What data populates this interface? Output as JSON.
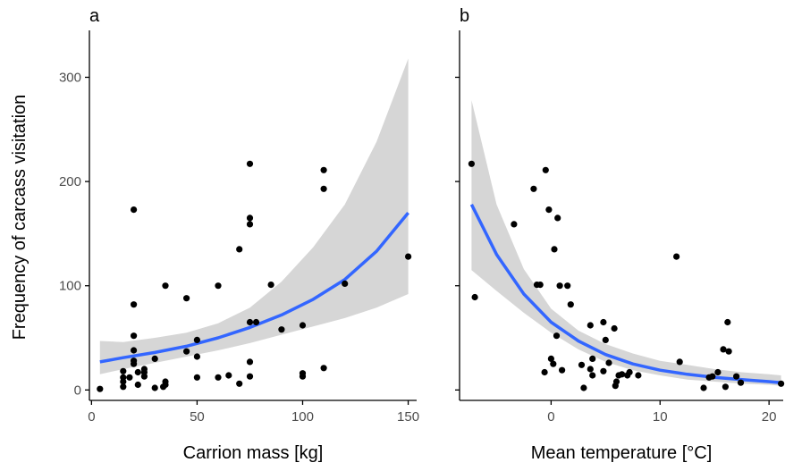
{
  "ylabel": "Frequency of carcass visitation",
  "colors": {
    "points": "#000000",
    "fit_line": "#3366ff",
    "ribbon": "#d6d6d6",
    "axis": "#000000",
    "tick_text": "#4d4d4d"
  },
  "chart_data": [
    {
      "type": "scatter",
      "panel_label": "a",
      "xlabel": "Carrion mass [kg]",
      "ylabel": "Frequency of carcass visitation",
      "xlim": [
        -1,
        154
      ],
      "ylim": [
        -10,
        345
      ],
      "xticks": [
        0,
        50,
        100,
        150
      ],
      "yticks": [
        0,
        100,
        200,
        300
      ],
      "grid": false,
      "points": [
        [
          4,
          1
        ],
        [
          15,
          3
        ],
        [
          15,
          8
        ],
        [
          15,
          12
        ],
        [
          15,
          18
        ],
        [
          18,
          12
        ],
        [
          20,
          25
        ],
        [
          20,
          28
        ],
        [
          20,
          38
        ],
        [
          20,
          52
        ],
        [
          20,
          82
        ],
        [
          20,
          173
        ],
        [
          22,
          5
        ],
        [
          22,
          17
        ],
        [
          25,
          13
        ],
        [
          25,
          17
        ],
        [
          25,
          20
        ],
        [
          30,
          2
        ],
        [
          30,
          30
        ],
        [
          34,
          3
        ],
        [
          35,
          5
        ],
        [
          35,
          8
        ],
        [
          35,
          100
        ],
        [
          45,
          37
        ],
        [
          45,
          88
        ],
        [
          50,
          12
        ],
        [
          50,
          32
        ],
        [
          50,
          48
        ],
        [
          60,
          12
        ],
        [
          60,
          100
        ],
        [
          65,
          14
        ],
        [
          70,
          6
        ],
        [
          70,
          135
        ],
        [
          75,
          13
        ],
        [
          75,
          27
        ],
        [
          75,
          65
        ],
        [
          75,
          159
        ],
        [
          75,
          165
        ],
        [
          75,
          217
        ],
        [
          78,
          65
        ],
        [
          85,
          101
        ],
        [
          90,
          58
        ],
        [
          100,
          13
        ],
        [
          100,
          16
        ],
        [
          100,
          62
        ],
        [
          110,
          21
        ],
        [
          110,
          193
        ],
        [
          110,
          211
        ],
        [
          120,
          102
        ],
        [
          150,
          128
        ]
      ],
      "fit": {
        "x": [
          4,
          15,
          30,
          45,
          60,
          75,
          90,
          105,
          120,
          135,
          150
        ],
        "y": [
          27,
          31,
          36,
          42,
          50,
          60,
          72,
          87,
          106,
          133,
          170
        ],
        "lower": [
          15,
          20,
          26,
          32,
          38,
          45,
          53,
          61,
          69,
          79,
          92
        ],
        "upper": [
          47,
          46,
          50,
          55,
          64,
          79,
          104,
          137,
          178,
          238,
          318
        ]
      }
    },
    {
      "type": "scatter",
      "panel_label": "b",
      "xlabel": "Mean temperature [°C]",
      "ylabel": "",
      "xlim": [
        -8.4,
        21.3
      ],
      "ylim": [
        -10,
        345
      ],
      "xticks": [
        0,
        10,
        20
      ],
      "yticks": [
        0,
        100,
        200,
        300
      ],
      "grid": false,
      "points": [
        [
          -7.3,
          217
        ],
        [
          -7.0,
          89
        ],
        [
          -3.4,
          159
        ],
        [
          -1.6,
          193
        ],
        [
          -1.3,
          101
        ],
        [
          -1.0,
          101
        ],
        [
          -0.6,
          17
        ],
        [
          -0.5,
          211
        ],
        [
          -0.2,
          173
        ],
        [
          0.0,
          30
        ],
        [
          0.2,
          25
        ],
        [
          0.3,
          135
        ],
        [
          0.5,
          52
        ],
        [
          0.6,
          165
        ],
        [
          0.8,
          100
        ],
        [
          1.0,
          19
        ],
        [
          1.5,
          100
        ],
        [
          1.8,
          82
        ],
        [
          2.8,
          24
        ],
        [
          3.0,
          2
        ],
        [
          3.6,
          62
        ],
        [
          3.6,
          20
        ],
        [
          3.8,
          14
        ],
        [
          3.8,
          30
        ],
        [
          4.8,
          65
        ],
        [
          4.8,
          18
        ],
        [
          5.0,
          48
        ],
        [
          5.3,
          26
        ],
        [
          5.8,
          59
        ],
        [
          5.9,
          4
        ],
        [
          6.0,
          8
        ],
        [
          6.2,
          14
        ],
        [
          6.5,
          15
        ],
        [
          7.0,
          14
        ],
        [
          7.2,
          17
        ],
        [
          8.0,
          14
        ],
        [
          11.5,
          128
        ],
        [
          11.8,
          27
        ],
        [
          14.0,
          2
        ],
        [
          14.5,
          12
        ],
        [
          14.8,
          13
        ],
        [
          15.3,
          17
        ],
        [
          15.8,
          39
        ],
        [
          16.0,
          3
        ],
        [
          16.2,
          65
        ],
        [
          16.3,
          37
        ],
        [
          17.0,
          13
        ],
        [
          17.4,
          7
        ],
        [
          21.1,
          6
        ]
      ],
      "fit": {
        "x": [
          -7.3,
          -5,
          -2.5,
          0,
          2.5,
          5,
          7.5,
          10,
          12.5,
          15,
          17.5,
          20,
          21.1
        ],
        "y": [
          178,
          130,
          92,
          65,
          47,
          34,
          25,
          19,
          15,
          12,
          10,
          8,
          7
        ],
        "lower": [
          115,
          95,
          74,
          55,
          39,
          27,
          19,
          14,
          10,
          8,
          6,
          5,
          4
        ],
        "upper": [
          278,
          178,
          116,
          78,
          57,
          44,
          35,
          28,
          24,
          20,
          17,
          15,
          14
        ]
      }
    }
  ]
}
